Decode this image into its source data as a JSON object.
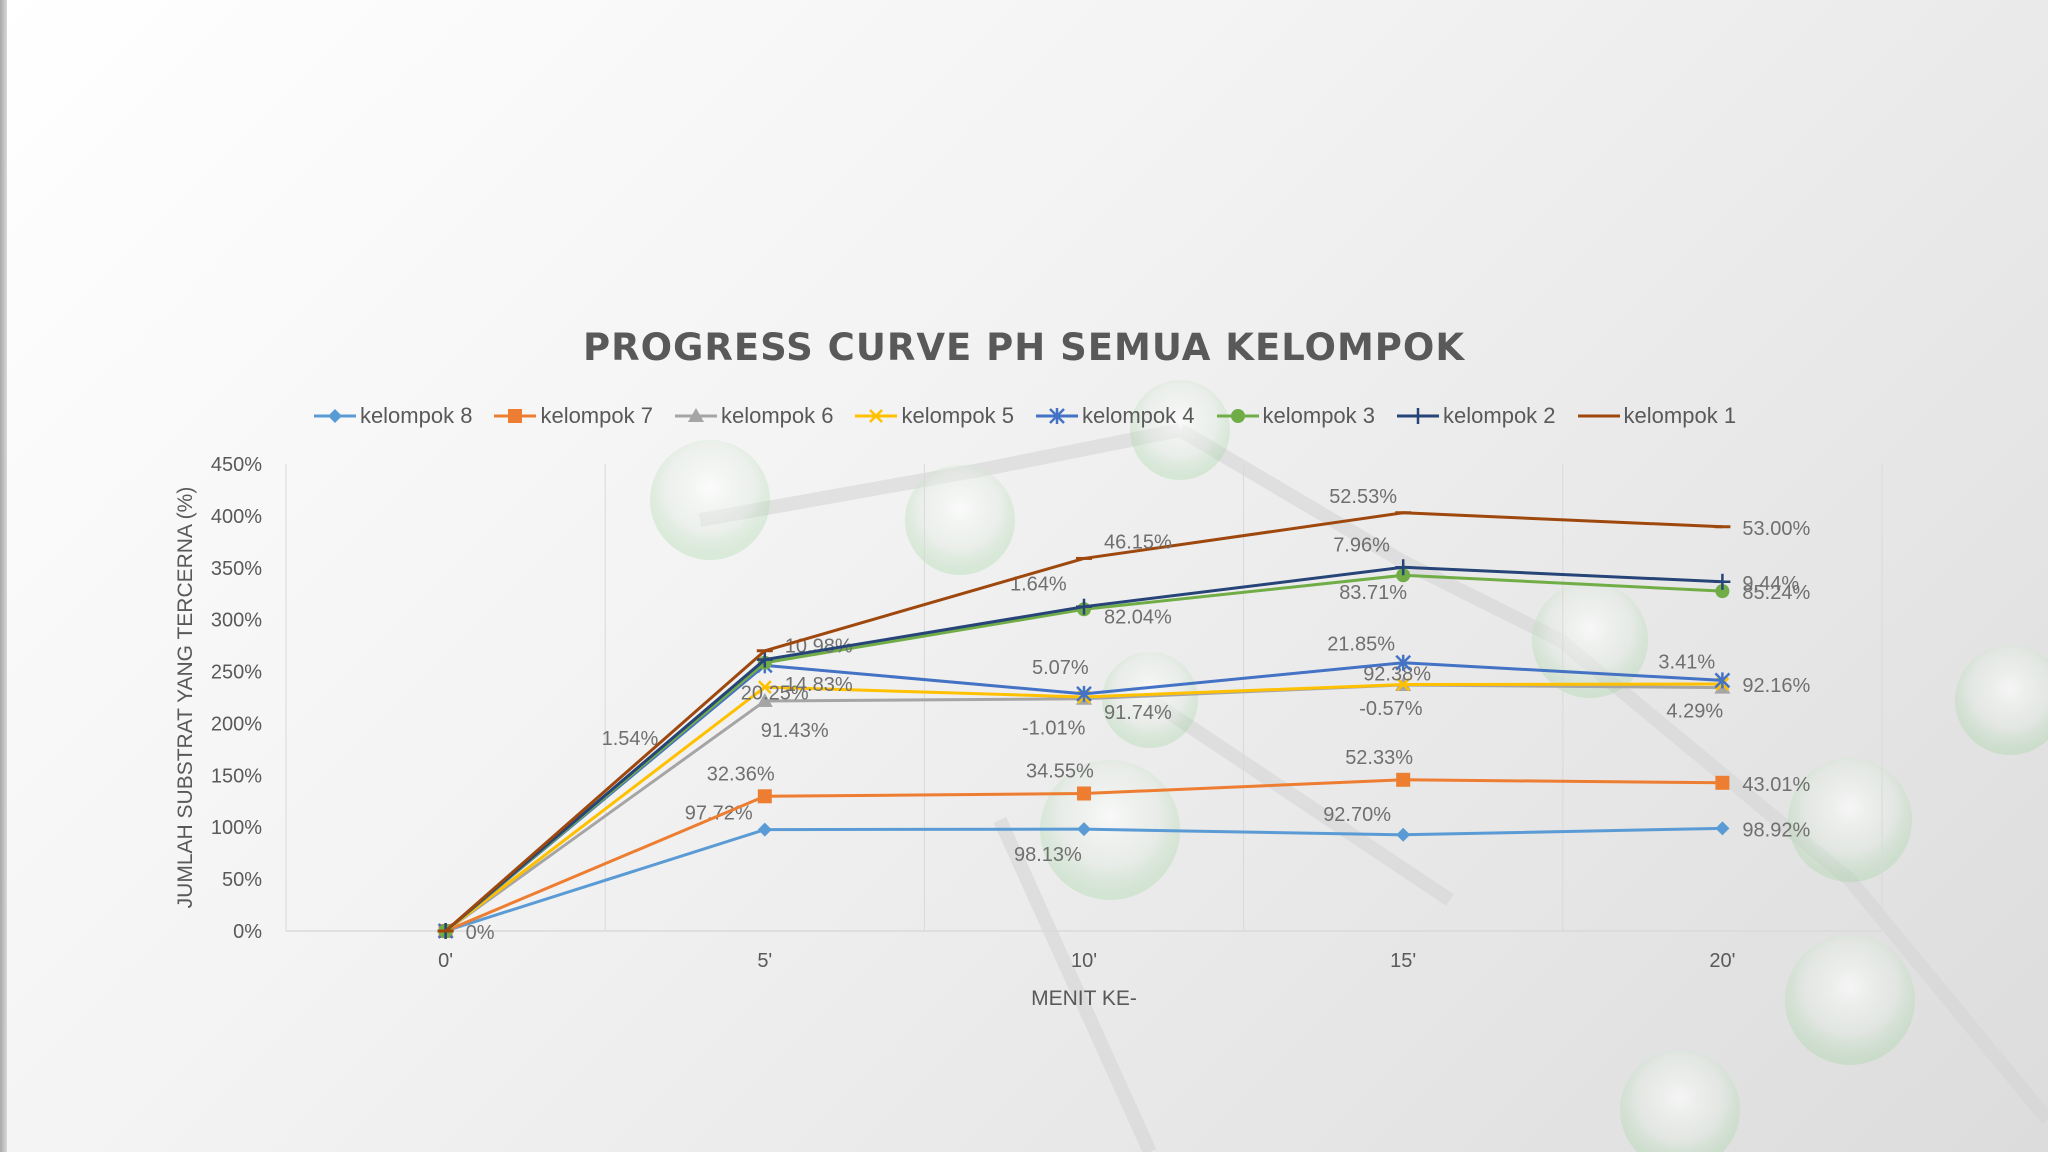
{
  "chart_data": {
    "type": "line",
    "title": "PROGRESS CURVE PH SEMUA KELOMPOK",
    "xlabel": "MENIT KE-",
    "ylabel": "JUMLAH SUBSTRAT YANG TERCERNA (%)",
    "categories": [
      "0'",
      "5'",
      "10'",
      "15'",
      "20'"
    ],
    "y_ticks": [
      "0%",
      "50%",
      "100%",
      "150%",
      "200%",
      "250%",
      "300%",
      "350%",
      "400%",
      "450%"
    ],
    "ylim": [
      0,
      450
    ],
    "grid": "vertical",
    "legend_position": "top",
    "series": [
      {
        "name": "kelompok 8",
        "color": "#5b9bd5",
        "marker": "diamond",
        "values": [
          0,
          97.72,
          98.13,
          92.7,
          98.92
        ],
        "labels": [
          "0%",
          "97.72%",
          "98.13%",
          "92.70%",
          "98.92%"
        ]
      },
      {
        "name": "kelompok 7",
        "color": "#ed7d31",
        "marker": "square",
        "values": [
          0,
          129.8,
          132.5,
          145.7,
          142.8
        ],
        "labels": [
          "",
          "32.36%",
          "34.55%",
          "52.33%",
          "43.01%"
        ]
      },
      {
        "name": "kelompok 6",
        "color": "#a5a5a5",
        "marker": "triangle",
        "values": [
          0,
          221.6,
          223.8,
          237.1,
          234.5
        ],
        "labels": [
          "",
          "91.43%",
          "-1.01%",
          "-0.57%",
          "4.29%"
        ]
      },
      {
        "name": "kelompok 5",
        "color": "#ffc000",
        "marker": "x",
        "values": [
          0,
          235.0,
          225.5,
          237.5,
          238.0
        ],
        "labels": [
          "",
          "14.83%",
          "91.74%",
          "92.38%",
          "92.16%"
        ]
      },
      {
        "name": "kelompok 4",
        "color": "#4472c4",
        "marker": "asterisk",
        "values": [
          0,
          256.0,
          228.5,
          258.5,
          241.5
        ],
        "labels": [
          "",
          "20.25%",
          "5.07%",
          "21.85%",
          "3.41%"
        ]
      },
      {
        "name": "kelompok 3",
        "color": "#70ad47",
        "marker": "circle",
        "values": [
          0,
          258.5,
          310.0,
          342.8,
          327.5
        ],
        "labels": [
          "",
          "10.98%",
          "82.04%",
          "83.71%",
          "85.24%"
        ]
      },
      {
        "name": "kelompok 2",
        "color": "#264478",
        "marker": "plus",
        "values": [
          0,
          261.5,
          312.5,
          350.5,
          336.5
        ],
        "labels": [
          "1.54%",
          "",
          "1.64%",
          "7.96%",
          "9.44%"
        ]
      },
      {
        "name": "kelompok 1",
        "color": "#9e480e",
        "marker": "dash",
        "values": [
          0,
          270.0,
          359.0,
          403.0,
          389.5
        ],
        "labels": [
          "",
          "",
          "46.15%",
          "52.53%",
          "53.00%"
        ]
      }
    ]
  }
}
